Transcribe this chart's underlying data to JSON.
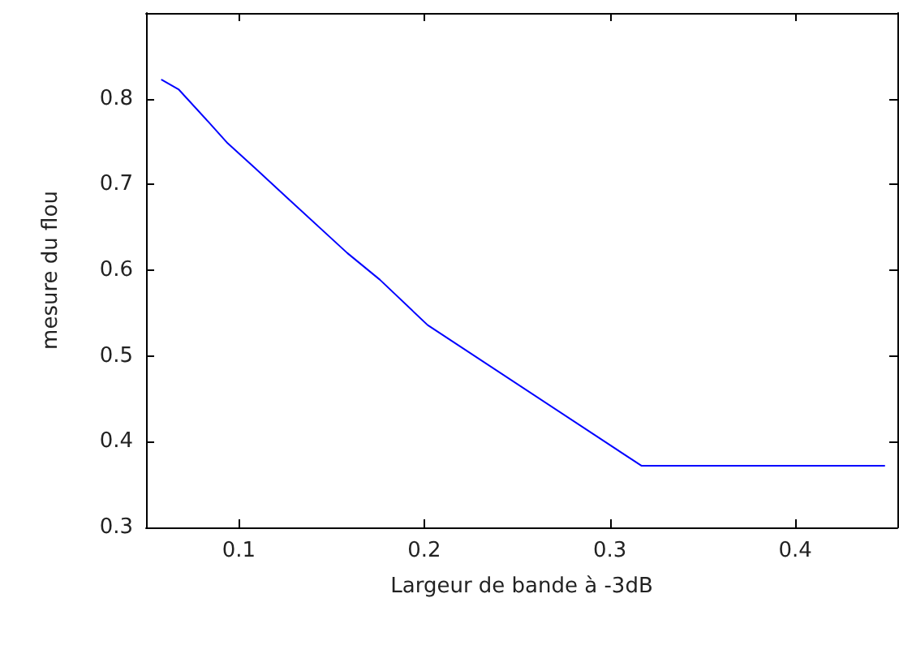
{
  "chart_data": {
    "type": "line",
    "xlabel": "Largeur de bande à -3dB",
    "ylabel": "mesure du flou",
    "x": [
      0.0585,
      0.0675,
      0.0836,
      0.094,
      0.1088,
      0.1263,
      0.1585,
      0.176,
      0.2018,
      0.317,
      0.448
    ],
    "series": [
      {
        "color": "#0000ff",
        "values": [
          0.822,
          0.811,
          0.773,
          0.748,
          0.719,
          0.684,
          0.62,
          0.589,
          0.536,
          0.372,
          0.372
        ]
      }
    ],
    "xlim": [
      0.05,
      0.455
    ],
    "xticks": [
      0.1,
      0.2,
      0.3,
      0.4
    ],
    "ylim": [
      0.3,
      0.9
    ],
    "yticks": [
      0.3,
      0.4,
      0.5,
      0.6,
      0.7,
      0.8
    ],
    "grid": false,
    "marker": "none",
    "line_style": "solid"
  }
}
